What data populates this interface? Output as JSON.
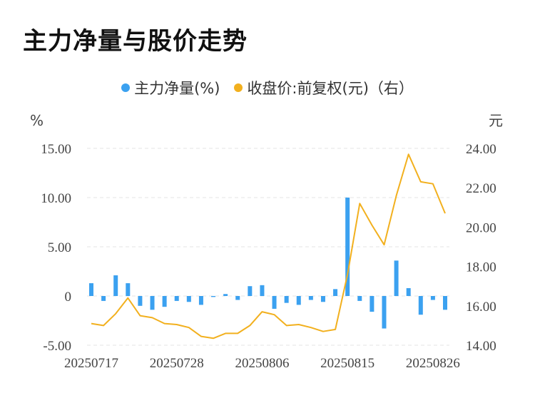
{
  "title": "主力净量与股价走势",
  "legend": {
    "items": [
      {
        "label": "主力净量(%)",
        "color": "#3ba1f0"
      },
      {
        "label": "收盘价:前复权(元)（右）",
        "color": "#f2b01e"
      }
    ]
  },
  "chart_data": {
    "type": "bar+line",
    "left_axis_unit": "%",
    "right_axis_unit": "元",
    "left_ticks": [
      "15.00",
      "10.00",
      "5.00",
      "0",
      "-5.00"
    ],
    "right_ticks": [
      "24.00",
      "22.00",
      "20.00",
      "18.00",
      "16.00",
      "14.00"
    ],
    "x_tick_labels": [
      "20250717",
      "20250728",
      "20250806",
      "20250815",
      "20250826"
    ],
    "x_tick_indices": [
      0,
      7,
      14,
      21,
      28
    ],
    "ylim_left": [
      -5,
      15
    ],
    "ylim_right": [
      14,
      24
    ],
    "grid": true,
    "legend_position": "top",
    "series": [
      {
        "name": "主力净量(%)",
        "type": "bar",
        "color": "#3ba1f0",
        "values": [
          1.3,
          -0.5,
          2.1,
          1.3,
          -1.0,
          -1.4,
          -1.1,
          -0.5,
          -0.6,
          -0.9,
          -0.1,
          0.2,
          -0.4,
          1.0,
          1.1,
          -1.3,
          -0.7,
          -0.9,
          -0.4,
          -0.6,
          0.7,
          10.0,
          -0.5,
          -1.6,
          -3.3,
          3.6,
          0.8,
          -1.9,
          -0.4,
          -1.4
        ]
      },
      {
        "name": "收盘价:前复权(元)（右）",
        "type": "line",
        "color": "#f2b01e",
        "values": [
          15.1,
          15.0,
          15.6,
          16.4,
          15.5,
          15.4,
          15.1,
          15.05,
          14.9,
          14.45,
          14.35,
          14.6,
          14.6,
          15.0,
          15.7,
          15.55,
          15.0,
          15.05,
          14.9,
          14.7,
          14.8,
          17.6,
          21.2,
          20.1,
          19.1,
          21.6,
          23.7,
          22.3,
          22.2,
          20.7
        ]
      }
    ]
  }
}
